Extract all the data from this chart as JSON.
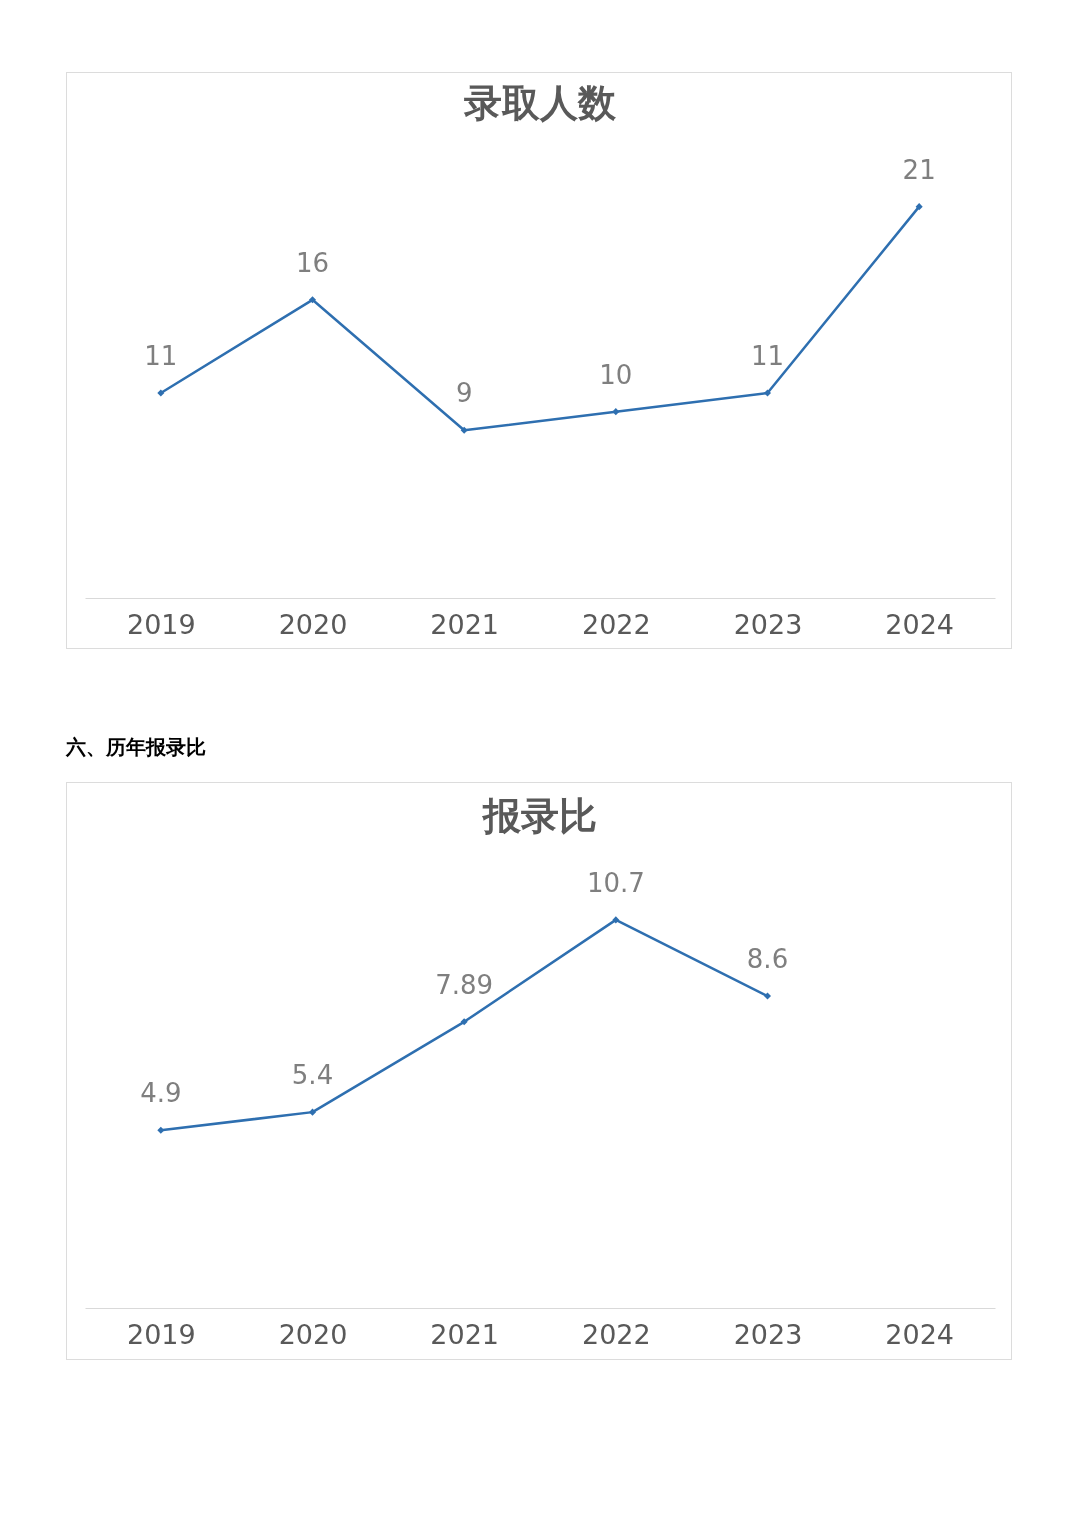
{
  "chart_data": [
    {
      "type": "line",
      "title": "录取人数",
      "categories": [
        "2019",
        "2020",
        "2021",
        "2022",
        "2023",
        "2024"
      ],
      "series": [
        {
          "color": "#2e6fb0",
          "values": [
            11,
            16,
            9,
            10,
            11,
            21
          ]
        }
      ],
      "data_labels": true,
      "marker": "diamond"
    },
    {
      "type": "line",
      "title": "报录比",
      "annotations": [
        "六、历年报录比"
      ],
      "categories": [
        "2019",
        "2020",
        "2021",
        "2022",
        "2023",
        "2024"
      ],
      "series": [
        {
          "color": "#2e6fb0",
          "values": [
            4.9,
            5.4,
            7.89,
            10.7,
            8.6,
            null
          ]
        }
      ],
      "data_labels": true,
      "marker": "diamond"
    }
  ]
}
